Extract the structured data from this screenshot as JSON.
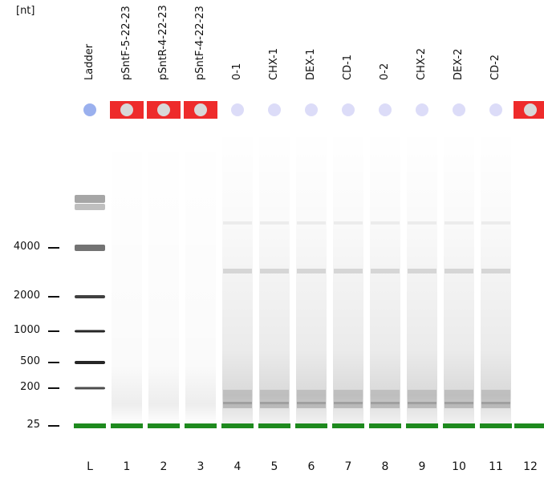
{
  "unit_label": "[nt]",
  "lanes": [
    {
      "num": "L",
      "label": "Ladder",
      "flag": "ok",
      "color": "#9ab0ee"
    },
    {
      "num": "1",
      "label": "pSntF-5-22-23",
      "flag": "alert",
      "color": "#ee2b2b"
    },
    {
      "num": "2",
      "label": "pSntR-4-22-23",
      "flag": "alert",
      "color": "#ee2b2b"
    },
    {
      "num": "3",
      "label": "pSntF-4-22-23",
      "flag": "alert",
      "color": "#ee2b2b"
    },
    {
      "num": "4",
      "label": "0-1",
      "flag": "ok",
      "color": "#dcdcf8"
    },
    {
      "num": "5",
      "label": "CHX-1",
      "flag": "ok",
      "color": "#dcdcf8"
    },
    {
      "num": "6",
      "label": "DEX-1",
      "flag": "ok",
      "color": "#dcdcf8"
    },
    {
      "num": "7",
      "label": "CD-1",
      "flag": "ok",
      "color": "#dcdcf8"
    },
    {
      "num": "8",
      "label": "0-2",
      "flag": "ok",
      "color": "#dcdcf8"
    },
    {
      "num": "9",
      "label": "CHX-2",
      "flag": "ok",
      "color": "#dcdcf8"
    },
    {
      "num": "10",
      "label": "DEX-2",
      "flag": "ok",
      "color": "#dcdcf8"
    },
    {
      "num": "11",
      "label": "CD-2",
      "flag": "ok",
      "color": "#dcdcf8"
    },
    {
      "num": "12",
      "label": "",
      "flag": "alert",
      "color": "#ee2b2b"
    }
  ],
  "size_markers": [
    "4000",
    "2000",
    "1000",
    "500",
    "200",
    "25"
  ],
  "colors": {
    "marker_band": "#1e8a1e",
    "alert": "#ee2b2b",
    "ladder_dot": "#9ab0ee",
    "sample_dot": "#dcdcf8"
  }
}
